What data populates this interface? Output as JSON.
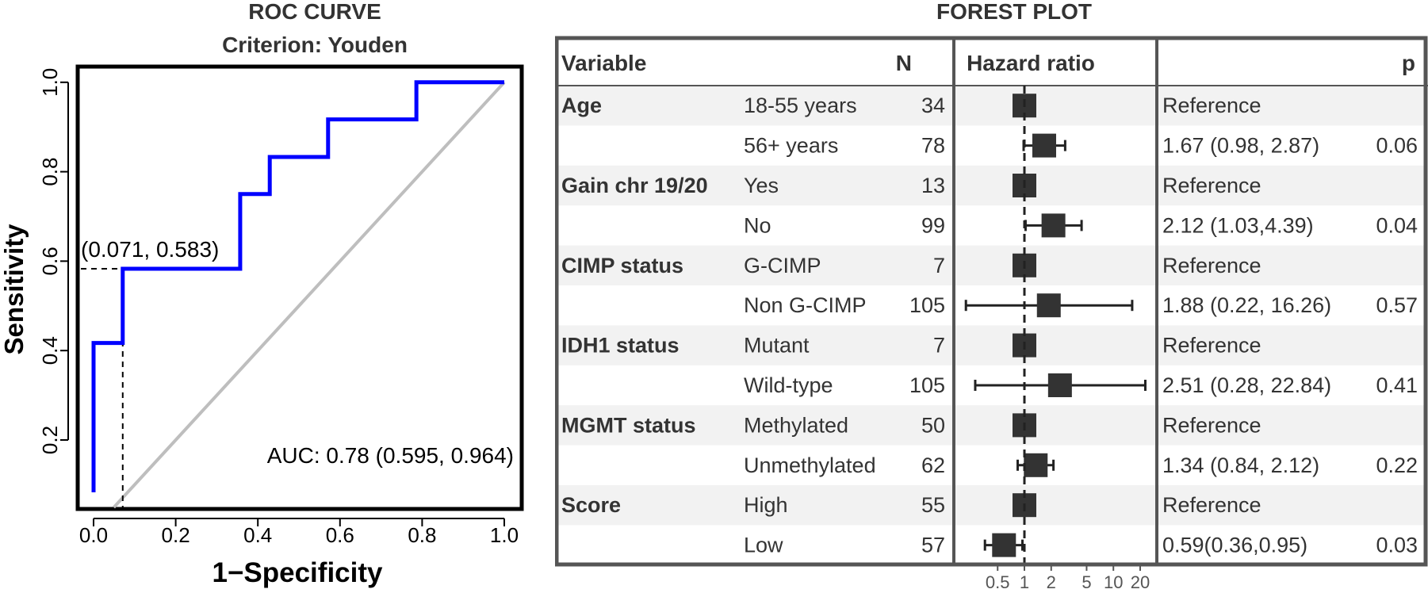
{
  "roc": {
    "title": "ROC CURVE",
    "subtitle": "Criterion: Youden",
    "xlabel": "1−Specificity",
    "ylabel": "Sensitivity",
    "x_ticks": [
      "0.0",
      "0.2",
      "0.4",
      "0.6",
      "0.8",
      "1.0"
    ],
    "y_ticks": [
      "0.2",
      "0.4",
      "0.6",
      "0.8",
      "1.0"
    ],
    "cutoff_label": "(0.071, 0.583)",
    "auc_label": "AUC: 0.78 (0.595, 0.964)",
    "curve_color": "#0000ff",
    "diagonal_color": "#bebebe"
  },
  "forest": {
    "title": "FOREST PLOT",
    "headers": {
      "variable": "Variable",
      "n": "N",
      "hr": "Hazard ratio",
      "p": "p"
    },
    "axis_ticks": [
      "0.5",
      "1",
      "2",
      "5",
      "10",
      "20"
    ],
    "box_color": "#333333",
    "shade_color": "#f2f2f2"
  },
  "chart_data": [
    {
      "type": "line",
      "title": "ROC CURVE",
      "subtitle": "Criterion: Youden",
      "xlabel": "1−Specificity",
      "ylabel": "Sensitivity",
      "xlim": [
        0,
        1
      ],
      "ylim": [
        0.05,
        1.03
      ],
      "series": [
        {
          "name": "ROC",
          "points": [
            [
              0,
              0.083
            ],
            [
              0,
              0.417
            ],
            [
              0.071,
              0.417
            ],
            [
              0.071,
              0.583
            ],
            [
              0.357,
              0.583
            ],
            [
              0.357,
              0.75
            ],
            [
              0.429,
              0.75
            ],
            [
              0.429,
              0.833
            ],
            [
              0.571,
              0.833
            ],
            [
              0.571,
              0.917
            ],
            [
              0.786,
              0.917
            ],
            [
              0.786,
              1.0
            ],
            [
              1.0,
              1.0
            ]
          ]
        }
      ],
      "cutoff": {
        "x": 0.071,
        "y": 0.583,
        "label": "(0.071, 0.583)"
      },
      "auc": {
        "value": 0.78,
        "ci": [
          0.595,
          0.964
        ],
        "label": "AUC: 0.78 (0.595, 0.964)"
      }
    },
    {
      "type": "forest",
      "title": "FOREST PLOT",
      "axis": {
        "scale": "log",
        "ticks": [
          0.5,
          1,
          2,
          5,
          10,
          20
        ],
        "xlim": [
          0.3,
          25
        ],
        "reference": 1
      },
      "rows": [
        {
          "variable": "Age",
          "level": "18-55 years",
          "n": "34",
          "hr": 1,
          "lo": null,
          "hi": null,
          "estimate": "Reference",
          "p": ""
        },
        {
          "variable": "",
          "level": "56+ years",
          "n": "78",
          "hr": 1.67,
          "lo": 0.98,
          "hi": 2.87,
          "estimate": "1.67 (0.98, 2.87)",
          "p": "0.06"
        },
        {
          "variable": "Gain chr 19/20",
          "level": "Yes",
          "n": "13",
          "hr": 1,
          "lo": null,
          "hi": null,
          "estimate": "Reference",
          "p": ""
        },
        {
          "variable": "",
          "level": "No",
          "n": "99",
          "hr": 2.12,
          "lo": 1.03,
          "hi": 4.39,
          "estimate": "2.12 (1.03,4.39)",
          "p": "0.04"
        },
        {
          "variable": "CIMP status",
          "level": "G-CIMP",
          "n": "7",
          "hr": 1,
          "lo": null,
          "hi": null,
          "estimate": "Reference",
          "p": ""
        },
        {
          "variable": "",
          "level": "Non G-CIMP",
          "n": "105",
          "hr": 1.88,
          "lo": 0.22,
          "hi": 16.26,
          "estimate": "1.88 (0.22, 16.26)",
          "p": "0.57"
        },
        {
          "variable": "IDH1 status",
          "level": "Mutant",
          "n": "7",
          "hr": 1,
          "lo": null,
          "hi": null,
          "estimate": "Reference",
          "p": ""
        },
        {
          "variable": "",
          "level": "Wild-type",
          "n": "105",
          "hr": 2.51,
          "lo": 0.28,
          "hi": 22.84,
          "estimate": "2.51 (0.28, 22.84)",
          "p": "0.41"
        },
        {
          "variable": "MGMT status",
          "level": "Methylated",
          "n": "50",
          "hr": 1,
          "lo": null,
          "hi": null,
          "estimate": "Reference",
          "p": ""
        },
        {
          "variable": "",
          "level": "Unmethylated",
          "n": "62",
          "hr": 1.34,
          "lo": 0.84,
          "hi": 2.12,
          "estimate": "1.34 (0.84, 2.12)",
          "p": "0.22"
        },
        {
          "variable": "Score",
          "level": "High",
          "n": "55",
          "hr": 1,
          "lo": null,
          "hi": null,
          "estimate": "Reference",
          "p": ""
        },
        {
          "variable": "",
          "level": "Low",
          "n": "57",
          "hr": 0.59,
          "lo": 0.36,
          "hi": 0.95,
          "estimate": "0.59(0.36,0.95)",
          "p": "0.03"
        }
      ]
    }
  ]
}
